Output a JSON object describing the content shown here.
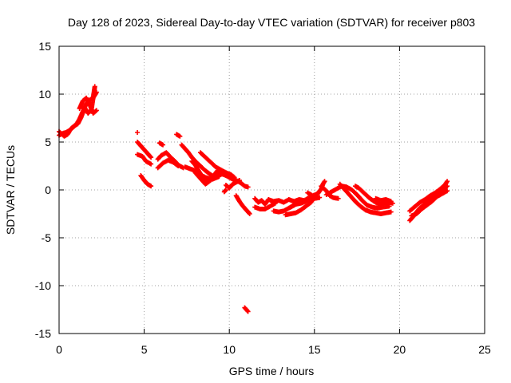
{
  "chart_data": {
    "type": "scatter",
    "title": "Day 128 of 2023, Sidereal Day-to-day VTEC variation (SDTVAR) for receiver p803",
    "xlabel": "GPS time / hours",
    "ylabel": "SDTVAR / TECUs",
    "xlim": [
      0,
      25
    ],
    "ylim": [
      -15,
      15
    ],
    "x_ticks": [
      0,
      5,
      10,
      15,
      20,
      25
    ],
    "y_ticks": [
      -15,
      -10,
      -5,
      0,
      5,
      10,
      15
    ],
    "x_tick_labels": [
      "0",
      "5",
      "10",
      "15",
      "20",
      "25"
    ],
    "y_tick_labels": [
      "-15",
      "-10",
      "-5",
      "0",
      "5",
      "10",
      "15"
    ],
    "grid": true,
    "marker": "+",
    "series": [
      {
        "name": "SDTVAR",
        "color": "#ff0000",
        "segments": [
          [
            [
              0.0,
              5.7
            ],
            [
              0.2,
              5.9
            ],
            [
              0.4,
              6.0
            ],
            [
              0.6,
              6.2
            ],
            [
              0.8,
              6.5
            ],
            [
              1.0,
              6.8
            ],
            [
              1.2,
              7.4
            ],
            [
              1.4,
              8.2
            ],
            [
              1.6,
              9.0
            ],
            [
              1.8,
              9.4
            ],
            [
              2.0,
              9.6
            ],
            [
              2.2,
              10.2
            ]
          ],
          [
            [
              0.0,
              6.1
            ],
            [
              0.3,
              5.6
            ],
            [
              0.5,
              5.8
            ],
            [
              0.7,
              6.4
            ],
            [
              0.9,
              6.7
            ],
            [
              1.1,
              6.9
            ],
            [
              1.3,
              7.6
            ],
            [
              1.5,
              8.6
            ],
            [
              1.7,
              8.0
            ],
            [
              1.9,
              8.4
            ],
            [
              2.1,
              10.8
            ]
          ],
          [
            [
              1.2,
              8.5
            ],
            [
              1.4,
              9.3
            ],
            [
              1.6,
              9.6
            ],
            [
              1.8,
              8.9
            ],
            [
              2.0,
              8.0
            ],
            [
              2.2,
              8.3
            ]
          ],
          [
            [
              4.6,
              6.0
            ]
          ],
          [
            [
              4.6,
              5.0
            ],
            [
              4.8,
              4.6
            ],
            [
              5.0,
              4.2
            ],
            [
              5.2,
              3.8
            ],
            [
              5.4,
              3.4
            ]
          ],
          [
            [
              4.6,
              3.7
            ],
            [
              4.9,
              3.5
            ],
            [
              5.1,
              3.0
            ],
            [
              5.4,
              2.7
            ]
          ],
          [
            [
              4.8,
              1.5
            ],
            [
              5.0,
              1.0
            ],
            [
              5.2,
              0.6
            ],
            [
              5.4,
              0.4
            ]
          ],
          [
            [
              5.8,
              3.2
            ],
            [
              6.0,
              3.6
            ],
            [
              6.3,
              3.9
            ],
            [
              6.5,
              3.5
            ],
            [
              6.8,
              3.0
            ],
            [
              7.0,
              2.6
            ],
            [
              7.3,
              2.3
            ]
          ],
          [
            [
              5.8,
              2.3
            ],
            [
              6.1,
              2.8
            ],
            [
              6.4,
              3.1
            ],
            [
              6.7,
              2.9
            ],
            [
              7.0,
              2.5
            ]
          ],
          [
            [
              5.9,
              4.9
            ],
            [
              6.1,
              4.7
            ]
          ],
          [
            [
              6.9,
              5.8
            ],
            [
              7.1,
              5.6
            ]
          ],
          [
            [
              7.2,
              4.7
            ],
            [
              7.4,
              4.3
            ],
            [
              7.6,
              3.9
            ],
            [
              7.8,
              3.4
            ],
            [
              8.0,
              3.0
            ],
            [
              8.3,
              2.5
            ],
            [
              8.6,
              2.0
            ],
            [
              8.9,
              1.6
            ],
            [
              9.2,
              1.3
            ]
          ],
          [
            [
              7.4,
              2.4
            ],
            [
              7.7,
              2.2
            ],
            [
              8.0,
              2.0
            ],
            [
              8.3,
              1.6
            ],
            [
              8.6,
              1.3
            ],
            [
              9.0,
              1.1
            ],
            [
              9.4,
              1.4
            ]
          ],
          [
            [
              7.8,
              3.0
            ],
            [
              8.0,
              2.6
            ],
            [
              8.2,
              2.0
            ],
            [
              8.4,
              1.4
            ],
            [
              8.6,
              1.0
            ],
            [
              8.8,
              0.9
            ],
            [
              9.0,
              1.3
            ],
            [
              9.3,
              2.0
            ]
          ],
          [
            [
              8.0,
              1.8
            ],
            [
              8.2,
              1.4
            ],
            [
              8.4,
              1.0
            ],
            [
              8.6,
              0.6
            ],
            [
              8.9,
              1.0
            ]
          ],
          [
            [
              8.3,
              3.9
            ],
            [
              8.6,
              3.4
            ],
            [
              8.9,
              2.9
            ],
            [
              9.2,
              2.4
            ],
            [
              9.5,
              2.1
            ],
            [
              9.8,
              1.8
            ]
          ],
          [
            [
              9.2,
              1.6
            ],
            [
              9.5,
              1.7
            ],
            [
              9.8,
              1.5
            ],
            [
              10.1,
              1.2
            ],
            [
              10.4,
              1.0
            ],
            [
              10.7,
              0.7
            ],
            [
              10.9,
              0.4
            ],
            [
              11.1,
              0.3
            ]
          ],
          [
            [
              9.5,
              2.0
            ],
            [
              9.8,
              1.8
            ],
            [
              10.1,
              1.6
            ],
            [
              10.3,
              1.3
            ]
          ],
          [
            [
              9.8,
              0.5
            ],
            [
              10.0,
              0.2
            ],
            [
              10.2,
              0.6
            ],
            [
              10.4,
              0.8
            ],
            [
              10.6,
              1.0
            ]
          ],
          [
            [
              9.7,
              -0.2
            ],
            [
              9.8,
              0.0
            ]
          ],
          [
            [
              10.4,
              -0.6
            ],
            [
              10.6,
              -1.2
            ],
            [
              10.8,
              -1.7
            ],
            [
              11.0,
              -2.1
            ],
            [
              11.2,
              -2.5
            ]
          ],
          [
            [
              10.9,
              -12.3
            ],
            [
              11.1,
              -12.7
            ]
          ],
          [
            [
              11.5,
              -0.9
            ],
            [
              11.7,
              -1.3
            ],
            [
              11.9,
              -1.1
            ],
            [
              12.1,
              -1.5
            ],
            [
              12.3,
              -1.0
            ],
            [
              12.6,
              -1.2
            ],
            [
              12.9,
              -1.1
            ],
            [
              13.2,
              -1.3
            ],
            [
              13.5,
              -1.0
            ],
            [
              13.8,
              -1.2
            ],
            [
              14.1,
              -1.0
            ],
            [
              14.4,
              -1.1
            ],
            [
              14.7,
              -0.8
            ],
            [
              15.0,
              -0.9
            ],
            [
              15.3,
              -0.8
            ]
          ],
          [
            [
              11.5,
              -1.8
            ],
            [
              11.8,
              -2.0
            ],
            [
              12.1,
              -2.0
            ],
            [
              12.4,
              -1.7
            ],
            [
              12.7,
              -1.4
            ]
          ],
          [
            [
              12.6,
              -2.2
            ],
            [
              12.9,
              -2.3
            ],
            [
              13.2,
              -2.2
            ],
            [
              13.5,
              -1.9
            ],
            [
              13.8,
              -1.6
            ],
            [
              14.1,
              -1.3
            ],
            [
              14.4,
              -1.2
            ],
            [
              14.7,
              -1.0
            ]
          ],
          [
            [
              13.3,
              -2.6
            ],
            [
              13.6,
              -2.5
            ],
            [
              13.9,
              -2.4
            ],
            [
              14.2,
              -2.1
            ],
            [
              14.5,
              -1.7
            ],
            [
              14.8,
              -1.3
            ],
            [
              15.0,
              -0.8
            ],
            [
              15.2,
              -0.3
            ]
          ],
          [
            [
              13.6,
              -1.8
            ],
            [
              13.9,
              -1.5
            ],
            [
              14.2,
              -1.4
            ],
            [
              14.5,
              -1.2
            ]
          ],
          [
            [
              14.6,
              -0.3
            ],
            [
              14.9,
              -0.6
            ],
            [
              15.2,
              -0.4
            ],
            [
              15.4,
              0.1
            ],
            [
              15.5,
              0.6
            ],
            [
              15.6,
              0.9
            ]
          ],
          [
            [
              15.4,
              0.4
            ],
            [
              15.7,
              -0.1
            ],
            [
              15.9,
              -0.6
            ],
            [
              16.1,
              -0.8
            ],
            [
              16.4,
              -0.9
            ]
          ],
          [
            [
              15.7,
              -0.5
            ],
            [
              16.0,
              -0.2
            ],
            [
              16.3,
              0.1
            ],
            [
              16.6,
              0.4
            ],
            [
              16.9,
              0.3
            ],
            [
              17.2,
              0.0
            ],
            [
              17.5,
              -0.5
            ],
            [
              17.8,
              -1.1
            ],
            [
              18.1,
              -1.6
            ],
            [
              18.4,
              -1.8
            ],
            [
              18.7,
              -1.9
            ],
            [
              19.0,
              -1.8
            ],
            [
              19.4,
              -1.7
            ]
          ],
          [
            [
              16.5,
              0.6
            ],
            [
              16.8,
              0.0
            ],
            [
              17.1,
              -0.6
            ],
            [
              17.4,
              -1.2
            ],
            [
              17.7,
              -1.7
            ],
            [
              18.0,
              -2.1
            ],
            [
              18.3,
              -2.3
            ],
            [
              18.6,
              -2.4
            ],
            [
              18.9,
              -2.5
            ],
            [
              19.2,
              -2.4
            ],
            [
              19.5,
              -2.3
            ]
          ],
          [
            [
              17.4,
              0.4
            ],
            [
              17.6,
              0.2
            ],
            [
              17.9,
              -0.3
            ],
            [
              18.2,
              -0.8
            ],
            [
              18.5,
              -1.2
            ],
            [
              18.8,
              -1.5
            ],
            [
              19.1,
              -1.4
            ],
            [
              19.4,
              -1.3
            ],
            [
              19.6,
              -1.4
            ]
          ],
          [
            [
              18.6,
              -0.9
            ],
            [
              18.9,
              -1.1
            ],
            [
              19.2,
              -1.0
            ],
            [
              19.5,
              -1.2
            ]
          ],
          [
            [
              20.6,
              -3.2
            ],
            [
              20.8,
              -2.8
            ],
            [
              21.0,
              -2.3
            ],
            [
              21.2,
              -1.9
            ],
            [
              21.4,
              -1.6
            ],
            [
              21.6,
              -1.3
            ],
            [
              21.8,
              -1.0
            ],
            [
              22.0,
              -0.7
            ],
            [
              22.2,
              -0.5
            ],
            [
              22.4,
              -0.2
            ],
            [
              22.6,
              0.1
            ],
            [
              22.8,
              0.4
            ]
          ],
          [
            [
              20.6,
              -2.2
            ],
            [
              20.8,
              -1.9
            ],
            [
              21.0,
              -1.6
            ],
            [
              21.2,
              -1.3
            ],
            [
              21.5,
              -1.0
            ],
            [
              21.8,
              -0.6
            ],
            [
              22.1,
              -0.3
            ],
            [
              22.4,
              0.1
            ],
            [
              22.7,
              0.6
            ],
            [
              22.8,
              0.9
            ]
          ],
          [
            [
              20.7,
              -2.7
            ],
            [
              21.0,
              -2.5
            ],
            [
              21.3,
              -2.0
            ],
            [
              21.6,
              -1.6
            ],
            [
              21.9,
              -1.2
            ],
            [
              22.2,
              -0.7
            ],
            [
              22.5,
              -0.4
            ],
            [
              22.8,
              -0.1
            ]
          ]
        ]
      }
    ]
  }
}
